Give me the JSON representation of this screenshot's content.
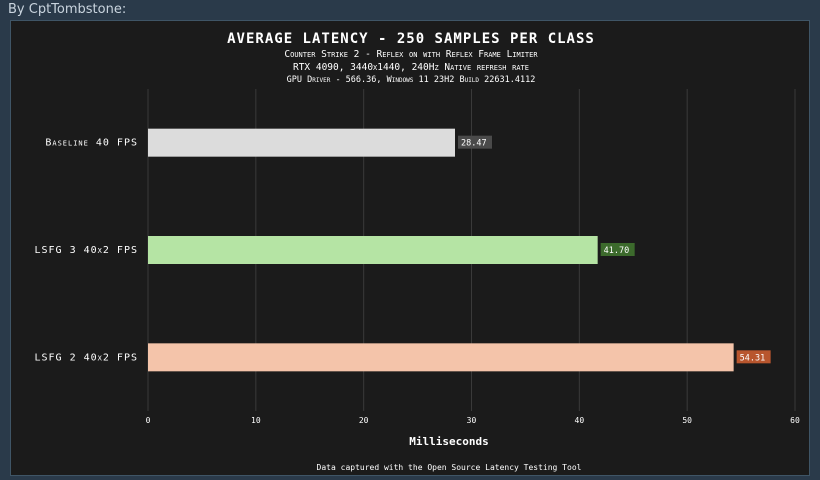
{
  "byline": "By CptTombstone:",
  "chart_data": {
    "type": "bar",
    "orientation": "horizontal",
    "title": "AVERAGE LATENCY - 250 SAMPLES PER CLASS",
    "subtitles": [
      "Counter Strike 2 - Reflex on with Reflex Frame Limiter",
      "RTX 4090, 3440x1440, 240Hz Native refresh rate",
      "GPU Driver - 566.36, Windows 11 23H2 Build 22631.4112"
    ],
    "categories": [
      "Baseline 40 FPS",
      "LSFG 3 40x2 FPS",
      "LSFG 2 40x2 FPS"
    ],
    "values": [
      28.47,
      41.7,
      54.31
    ],
    "value_labels": [
      "28.47",
      "41.70",
      "54.31"
    ],
    "bar_colors": [
      "#dcdcdc",
      "#b5e4a4",
      "#f4c4aa"
    ],
    "label_colors": [
      "#4a4a4a",
      "#3c6a2c",
      "#b8562e"
    ],
    "xlabel": "Milliseconds",
    "xlim": [
      0,
      60
    ],
    "xticks": [
      0,
      10,
      20,
      30,
      40,
      50,
      60
    ],
    "grid": true,
    "footnote": "Data captured with the Open Source Latency Testing Tool"
  }
}
